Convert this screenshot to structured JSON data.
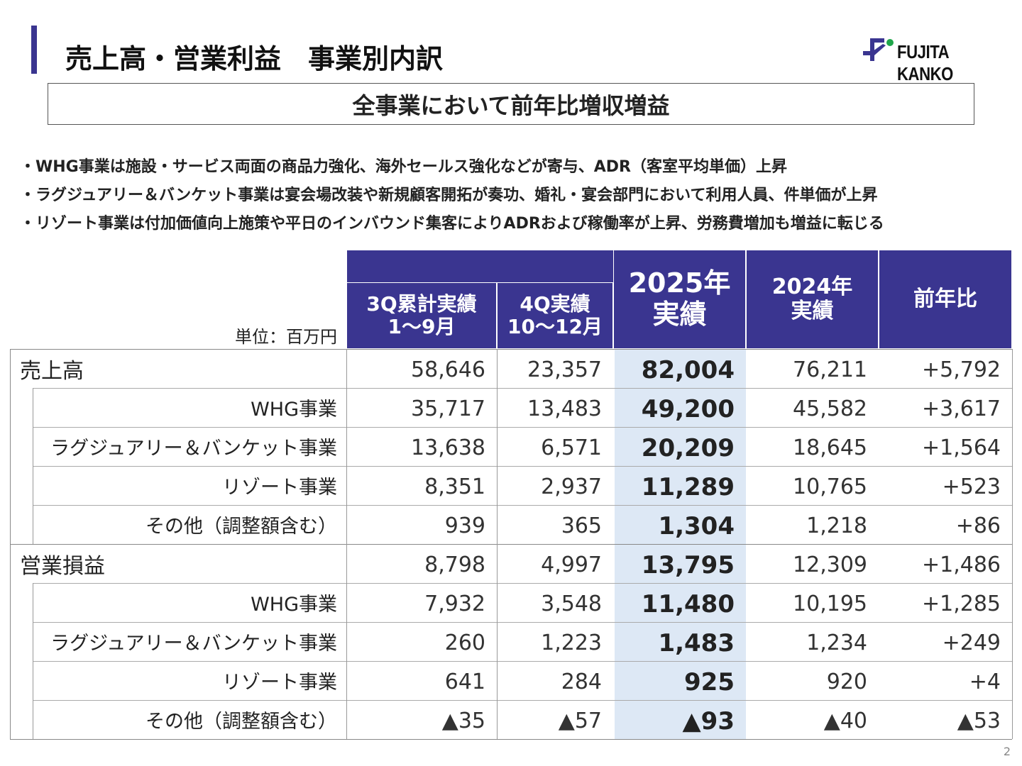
{
  "header": {
    "title": "売上高・営業利益　事業別内訳",
    "logo_text": "FUJITA KANKO",
    "accent": "#3a3590"
  },
  "banner": "全事業において前年比増収増益",
  "bullets": [
    "・WHG事業は施設・サービス両面の商品力強化、海外セールス強化などが寄与、ADR（客室平均単価）上昇",
    "・ラグジュアリー＆バンケット事業は宴会場改装や新規顧客開拓が奏功、婚礼・宴会部門において利用人員、件単価が上昇",
    "・リゾート事業は付加価値向上施策や平日のインバウンド集客によりADRおよび稼働率が上昇、労務費増加も増益に転じる"
  ],
  "table": {
    "unit": "単位：百万円",
    "columns": [
      "3Q累計実績\n1～9月",
      "4Q実績\n10～12月",
      "2025年\n実績",
      "2024年\n実績",
      "前年比"
    ],
    "rows": [
      {
        "label": "売上高",
        "section": true,
        "values": [
          "58,646",
          "23,357",
          "82,004",
          "76,211",
          "+5,792"
        ]
      },
      {
        "label": "WHG事業",
        "values": [
          "35,717",
          "13,483",
          "49,200",
          "45,582",
          "+3,617"
        ]
      },
      {
        "label": "ラグジュアリー＆バンケット事業",
        "values": [
          "13,638",
          "6,571",
          "20,209",
          "18,645",
          "+1,564"
        ]
      },
      {
        "label": "リゾート事業",
        "values": [
          "8,351",
          "2,937",
          "11,289",
          "10,765",
          "+523"
        ]
      },
      {
        "label": "その他（調整額含む）",
        "values": [
          "939",
          "365",
          "1,304",
          "1,218",
          "+86"
        ]
      },
      {
        "label": "営業損益",
        "section": true,
        "values": [
          "8,798",
          "4,997",
          "13,795",
          "12,309",
          "+1,486"
        ]
      },
      {
        "label": "WHG事業",
        "values": [
          "7,932",
          "3,548",
          "11,480",
          "10,195",
          "+1,285"
        ]
      },
      {
        "label": "ラグジュアリー＆バンケット事業",
        "values": [
          "260",
          "1,223",
          "1,483",
          "1,234",
          "+249"
        ]
      },
      {
        "label": "リゾート事業",
        "values": [
          "641",
          "284",
          "925",
          "920",
          "+4"
        ]
      },
      {
        "label": "その他（調整額含む）",
        "values": [
          "▲35",
          "▲57",
          "▲93",
          "▲40",
          "▲53"
        ]
      }
    ]
  },
  "page_number": "2"
}
